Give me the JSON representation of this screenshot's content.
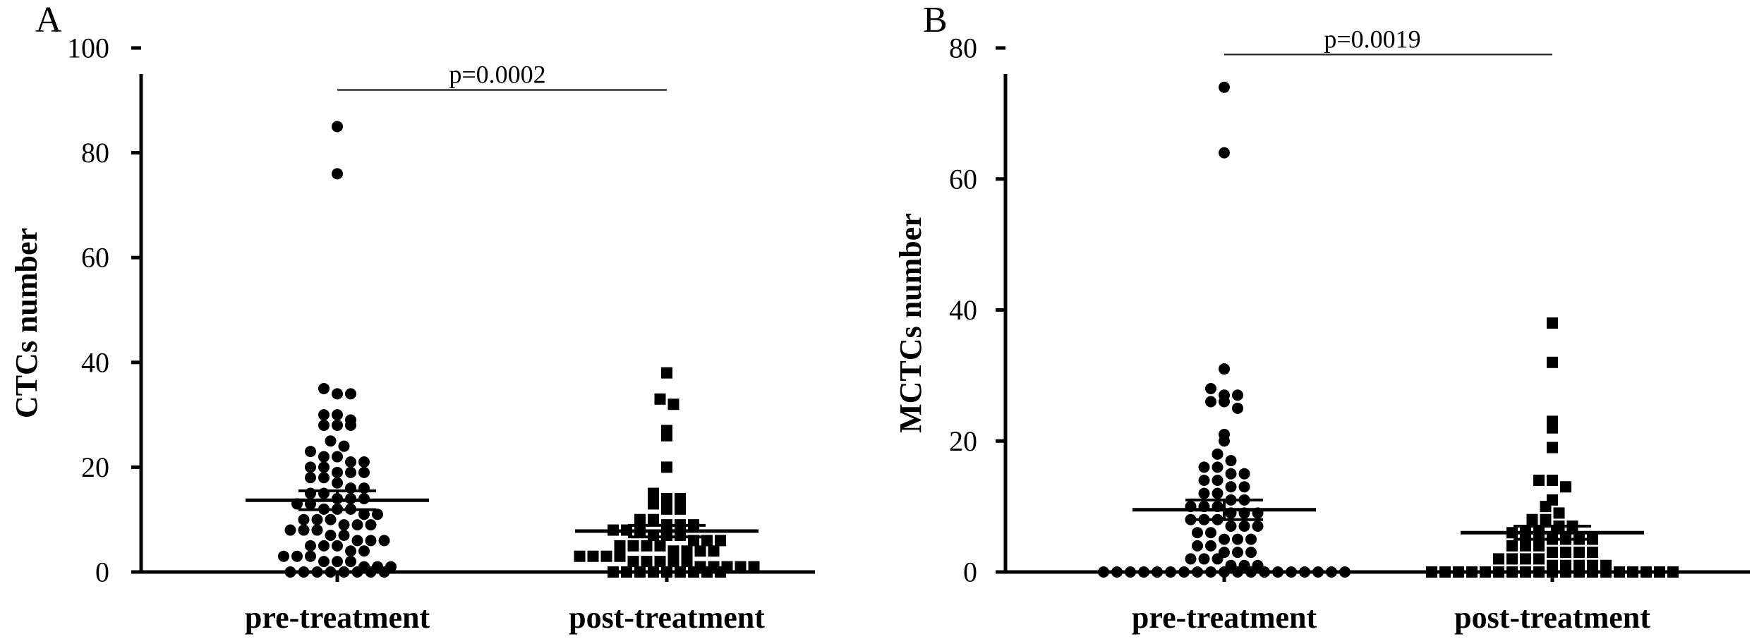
{
  "chart_data": [
    {
      "panel": "A",
      "type": "scatter",
      "ylabel": "CTCs number",
      "ylim": [
        0,
        100
      ],
      "yticks": [
        "0",
        "20",
        "40",
        "60",
        "80",
        "100"
      ],
      "categories": [
        "pre-treatment",
        "post-treatment"
      ],
      "grid": false,
      "series": [
        {
          "marker": "circle",
          "values": [
            85,
            76,
            35,
            34,
            34,
            30,
            30,
            29,
            28,
            28,
            28,
            25,
            24,
            23,
            22,
            22,
            21,
            21,
            20,
            20,
            19,
            19,
            19,
            18,
            18,
            17,
            16,
            16,
            15,
            15,
            14,
            14,
            14,
            13,
            13,
            12,
            12,
            12,
            11,
            11,
            10,
            10,
            10,
            9,
            9,
            9,
            8,
            8,
            8,
            7,
            7,
            6,
            6,
            6,
            5,
            5,
            5,
            4,
            4,
            3,
            3,
            3,
            2,
            2,
            2,
            1,
            1,
            1,
            0,
            0,
            0,
            0,
            0,
            0,
            0,
            0
          ],
          "mean": 13.7,
          "sem_bounds": [
            11.9,
            15.5
          ]
        },
        {
          "marker": "square",
          "values": [
            38,
            33,
            32,
            27,
            26,
            20,
            15,
            14,
            14,
            13,
            12,
            12,
            10,
            10,
            9,
            9,
            9,
            8,
            8,
            8,
            7,
            7,
            7,
            6,
            6,
            6,
            5,
            5,
            5,
            5,
            4,
            4,
            4,
            4,
            3,
            3,
            3,
            3,
            2,
            2,
            2,
            2,
            2,
            1,
            1,
            1,
            1,
            1,
            0,
            0,
            0,
            0,
            0,
            0,
            0,
            0,
            0
          ],
          "mean": 7.8,
          "sem_bounds": [
            6.7,
            8.9
          ]
        }
      ],
      "annotations": [
        {
          "text": "p=0.0002",
          "y": 92,
          "from": "pre-treatment",
          "to": "post-treatment"
        }
      ]
    },
    {
      "panel": "B",
      "type": "scatter",
      "ylabel": "MCTCs number",
      "ylim": [
        0,
        80
      ],
      "yticks": [
        "0",
        "20",
        "40",
        "60",
        "80"
      ],
      "categories": [
        "pre-treatment",
        "post-treatment"
      ],
      "grid": false,
      "series": [
        {
          "marker": "circle",
          "values": [
            74,
            64,
            31,
            28,
            27,
            27,
            26,
            26,
            25,
            21,
            20,
            18,
            17,
            16,
            16,
            15,
            15,
            14,
            14,
            13,
            13,
            12,
            12,
            11,
            11,
            10,
            10,
            10,
            9,
            9,
            9,
            8,
            8,
            8,
            7,
            7,
            7,
            6,
            6,
            5,
            5,
            5,
            4,
            4,
            3,
            3,
            3,
            2,
            2,
            2,
            1,
            1,
            1,
            0,
            0,
            0,
            0,
            0,
            0,
            0,
            0,
            0,
            0,
            0,
            0,
            0,
            0,
            0,
            0,
            0,
            0,
            0
          ],
          "mean": 9.5,
          "sem_bounds": [
            8.0,
            11.0
          ]
        },
        {
          "marker": "square",
          "values": [
            38,
            32,
            23,
            22,
            19,
            14,
            14,
            13,
            11,
            10,
            9,
            8,
            8,
            7,
            7,
            6,
            6,
            6,
            5,
            5,
            5,
            5,
            4,
            4,
            4,
            3,
            3,
            3,
            3,
            2,
            2,
            2,
            2,
            1,
            1,
            1,
            1,
            1,
            0,
            0,
            0,
            0,
            0,
            0,
            0,
            0,
            0,
            0,
            0,
            0,
            0,
            0,
            0,
            0,
            0,
            0,
            0
          ],
          "mean": 6.0,
          "sem_bounds": [
            5.0,
            7.0
          ]
        }
      ],
      "annotations": [
        {
          "text": "p=0.0019",
          "y": 79,
          "from": "pre-treatment",
          "to": "post-treatment"
        }
      ]
    }
  ]
}
